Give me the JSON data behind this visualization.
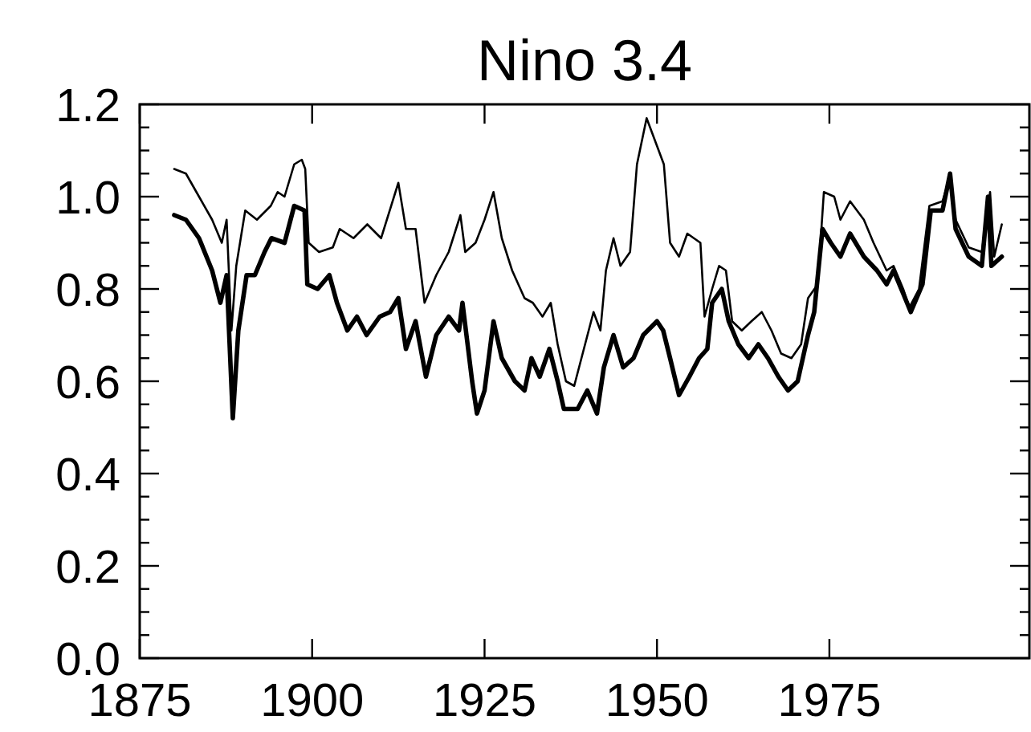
{
  "chart_data": {
    "type": "line",
    "title": "Nino 3.4",
    "xlim": [
      1875,
      2004
    ],
    "ylim": [
      0,
      1.2
    ],
    "xticks": [
      1875,
      1900,
      1925,
      1950,
      1975
    ],
    "yticks": [
      {
        "value": 0,
        "label": "0.0"
      },
      {
        "value": 0.05,
        "label": null
      },
      {
        "value": 0.1,
        "label": null
      },
      {
        "value": 0.15,
        "label": null
      },
      0.2,
      {
        "value": 0.25,
        "label": null
      },
      {
        "value": 0.3,
        "label": null
      },
      {
        "value": 0.35,
        "label": null
      },
      0.4,
      {
        "value": 0.45,
        "label": null
      },
      {
        "value": 0.5,
        "label": null
      },
      {
        "value": 0.55,
        "label": null
      },
      0.6,
      {
        "value": 0.65,
        "label": null
      },
      {
        "value": 0.7,
        "label": null
      },
      {
        "value": 0.75,
        "label": null
      },
      0.8,
      {
        "value": 0.85,
        "label": null
      },
      {
        "value": 0.9,
        "label": null
      },
      {
        "value": 0.95,
        "label": null
      },
      {
        "value": 1,
        "label": "1.0"
      },
      {
        "value": 1.05,
        "label": null
      },
      {
        "value": 1.1,
        "label": null
      },
      {
        "value": 1.15,
        "label": null
      },
      1.2
    ],
    "series": [
      {
        "color": "#000000",
        "x": [
          1880,
          1881.7,
          1883.6,
          1885.5,
          1886.9,
          1887.6,
          1888.3,
          1889,
          1890.3,
          1892,
          1894,
          1895,
          1896,
          1897.4,
          1898.5,
          1899,
          1899.5,
          1901,
          1903,
          1904,
          1906,
          1908,
          1910,
          1912.5,
          1913.6,
          1915,
          1916.3,
          1918,
          1919.8,
          1921.5,
          1922.2,
          1923.7,
          1925,
          1926.3,
          1927.5,
          1929,
          1930.8,
          1932,
          1933.4,
          1934.6,
          1935.6,
          1936.8,
          1938,
          1939.4,
          1940.8,
          1941.8,
          1942.6,
          1943.7,
          1944.7,
          1946.1,
          1947.1,
          1948.5,
          1950,
          1951,
          1951.9,
          1953.2,
          1954.4,
          1956.3,
          1956.9,
          1958,
          1959,
          1960,
          1960.9,
          1962.3,
          1963.7,
          1965.2,
          1966.6,
          1968,
          1969.5,
          1970.9,
          1971.9,
          1973.3,
          1974.2,
          1975.7,
          1976.6,
          1978,
          1980,
          1981.4,
          1983.3,
          1984.3,
          1985.7,
          1986.6,
          1988,
          1989.5,
          1991.4,
          1992.4,
          1993.3,
          1995.2,
          1997.1,
          1998.3,
          1998.9,
          2000
        ],
        "values": [
          1.06,
          1.05,
          1.0,
          0.95,
          0.9,
          0.95,
          0.71,
          0.85,
          0.97,
          0.95,
          0.98,
          1.01,
          1.0,
          1.07,
          1.08,
          1.06,
          0.9,
          0.88,
          0.89,
          0.93,
          0.91,
          0.94,
          0.91,
          1.03,
          0.93,
          0.93,
          0.77,
          0.83,
          0.88,
          0.96,
          0.88,
          0.9,
          0.95,
          1.01,
          0.91,
          0.84,
          0.78,
          0.77,
          0.74,
          0.77,
          0.68,
          0.6,
          0.59,
          0.67,
          0.75,
          0.71,
          0.84,
          0.91,
          0.85,
          0.88,
          1.07,
          1.17,
          1.11,
          1.07,
          0.9,
          0.87,
          0.92,
          0.9,
          0.74,
          0.8,
          0.85,
          0.84,
          0.73,
          0.71,
          0.73,
          0.75,
          0.71,
          0.66,
          0.65,
          0.68,
          0.78,
          0.81,
          1.01,
          1.0,
          0.95,
          0.99,
          0.95,
          0.9,
          0.84,
          0.85,
          0.8,
          0.76,
          0.8,
          0.98,
          0.99,
          1.04,
          0.95,
          0.89,
          0.88,
          1.01,
          0.87,
          0.94
        ]
      },
      {
        "color": "#000000",
        "x": [
          1880,
          1881.7,
          1883.6,
          1885.5,
          1886.7,
          1887.6,
          1888.5,
          1889.3,
          1890.5,
          1891.7,
          1893.1,
          1894.1,
          1896,
          1897.4,
          1898.9,
          1899.3,
          1900.8,
          1902.5,
          1903.6,
          1905.1,
          1906.5,
          1907.9,
          1909.8,
          1911.3,
          1912.5,
          1913.6,
          1915,
          1916.5,
          1918,
          1919.8,
          1921.3,
          1921.8,
          1923.2,
          1923.9,
          1925,
          1926.3,
          1927.5,
          1929.4,
          1930.8,
          1931.8,
          1933,
          1934.4,
          1935.6,
          1936.5,
          1938.5,
          1939.9,
          1941.3,
          1942.3,
          1943.7,
          1945.1,
          1946.6,
          1948,
          1950,
          1950.9,
          1951.9,
          1953.2,
          1954.7,
          1956.1,
          1957.3,
          1958,
          1959.4,
          1960.4,
          1961.8,
          1963.3,
          1964.7,
          1966.1,
          1967.6,
          1969,
          1970.4,
          1971.9,
          1972.8,
          1974,
          1975.2,
          1976.6,
          1978,
          1980,
          1981.9,
          1983.3,
          1984.3,
          1985.7,
          1986.8,
          1988.5,
          1989.7,
          1991.4,
          1992.5,
          1993.3,
          1995.2,
          1997.1,
          1998,
          1998.5,
          2000
        ],
        "values": [
          0.96,
          0.95,
          0.91,
          0.84,
          0.77,
          0.83,
          0.52,
          0.71,
          0.83,
          0.83,
          0.88,
          0.91,
          0.9,
          0.98,
          0.97,
          0.81,
          0.8,
          0.83,
          0.77,
          0.71,
          0.74,
          0.7,
          0.74,
          0.75,
          0.78,
          0.67,
          0.73,
          0.61,
          0.7,
          0.74,
          0.71,
          0.77,
          0.6,
          0.53,
          0.58,
          0.73,
          0.65,
          0.6,
          0.58,
          0.65,
          0.61,
          0.67,
          0.6,
          0.54,
          0.54,
          0.58,
          0.53,
          0.63,
          0.7,
          0.63,
          0.65,
          0.7,
          0.73,
          0.71,
          0.65,
          0.57,
          0.61,
          0.65,
          0.67,
          0.77,
          0.8,
          0.73,
          0.68,
          0.65,
          0.68,
          0.65,
          0.61,
          0.58,
          0.6,
          0.7,
          0.75,
          0.93,
          0.9,
          0.87,
          0.92,
          0.87,
          0.84,
          0.81,
          0.84,
          0.79,
          0.75,
          0.81,
          0.97,
          0.97,
          1.05,
          0.93,
          0.87,
          0.85,
          1.0,
          0.85,
          0.87
        ]
      }
    ]
  }
}
